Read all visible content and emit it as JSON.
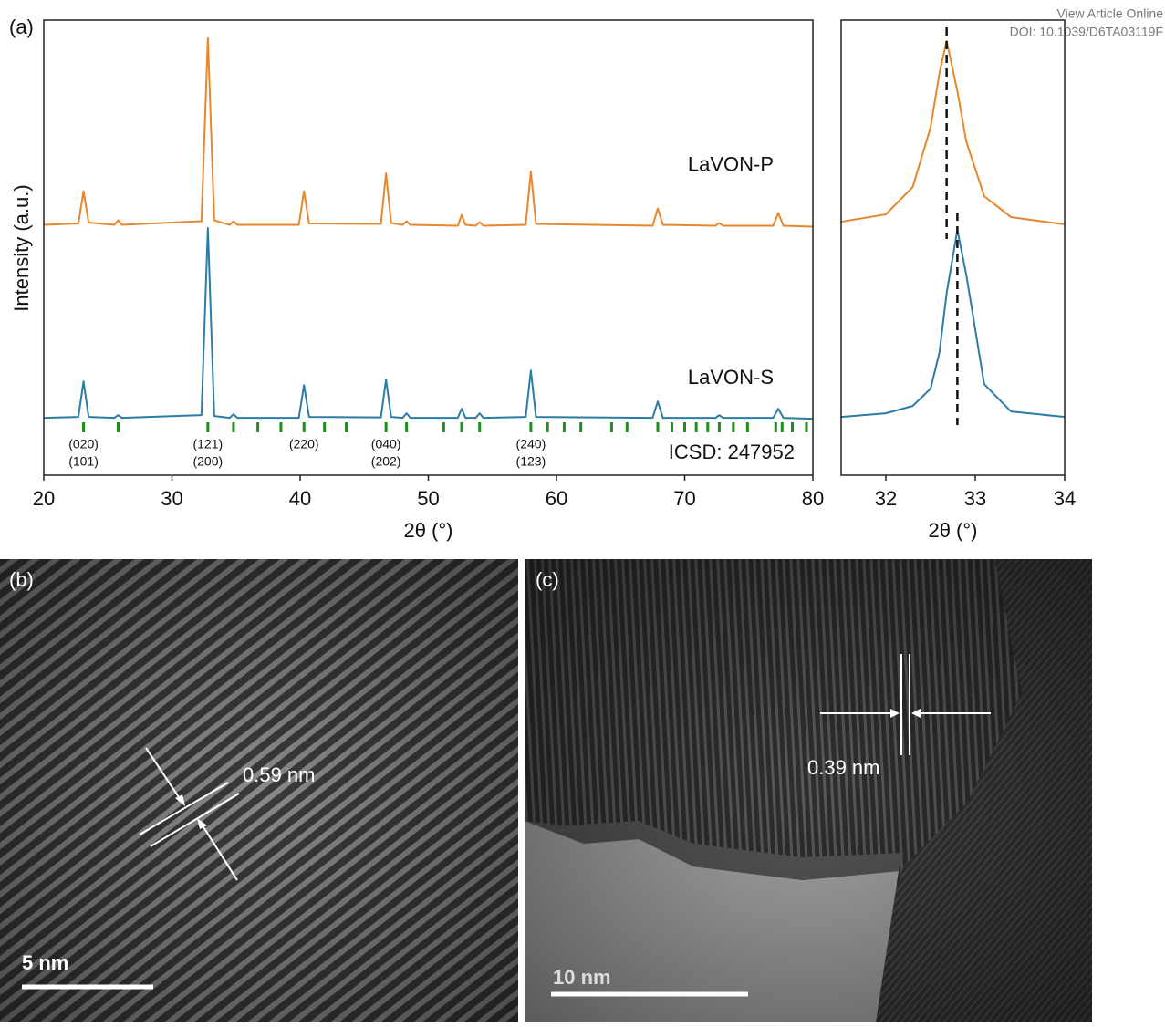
{
  "header": {
    "link": "View Article Online",
    "doi": "DOI: 10.1039/D6TA03119F"
  },
  "chart_data": [
    {
      "type": "line",
      "panel_label": "(a)",
      "y_label": "Intensity (a.u.)",
      "x_label": "2θ (°)",
      "xlim": [
        20,
        80
      ],
      "xticks": [
        20,
        30,
        40,
        50,
        60,
        70,
        80
      ],
      "ylim": [
        0,
        100
      ],
      "x": [
        20,
        22.7,
        23.1,
        23.5,
        25.5,
        25.8,
        26.1,
        32.3,
        32.8,
        33.3,
        34.5,
        34.8,
        35.1,
        39.9,
        40.3,
        40.7,
        46.3,
        46.7,
        47.1,
        48.0,
        48.3,
        48.6,
        52.3,
        52.6,
        52.9,
        53.7,
        54.0,
        54.3,
        57.6,
        58.0,
        58.4,
        67.5,
        67.9,
        68.3,
        72.4,
        72.7,
        73.0,
        76.9,
        77.3,
        77.7,
        80
      ],
      "series": [
        {
          "name": "LaVON-P",
          "color": "#e8862b",
          "values": [
            55,
            55.3,
            62.4,
            55.5,
            55,
            56,
            55,
            55.8,
            96,
            56,
            55,
            55.8,
            55,
            55,
            62.4,
            55.3,
            55.2,
            66.3,
            55.4,
            55,
            55.8,
            55,
            54.8,
            57.2,
            55,
            54.8,
            55.6,
            54.8,
            55,
            66.7,
            55.2,
            54.8,
            58.6,
            55,
            54.8,
            55.4,
            54.8,
            54.8,
            57.6,
            54.8,
            54.6
          ]
        },
        {
          "name": "LaVON-S",
          "color": "#2c7ca3",
          "values": [
            12.6,
            12.8,
            20.6,
            12.8,
            12.6,
            13.2,
            12.6,
            13.2,
            54.3,
            13,
            12.6,
            13.4,
            12.6,
            12.6,
            19.8,
            12.8,
            12.7,
            21,
            12.8,
            12.6,
            13.6,
            12.6,
            12.6,
            14.6,
            12.6,
            12.6,
            13.6,
            12.6,
            12.8,
            23,
            12.8,
            12.6,
            16.2,
            12.6,
            12.6,
            13.2,
            12.6,
            12.6,
            14.6,
            12.6,
            12.4
          ]
        }
      ],
      "reference": {
        "name": "ICSD: 247952",
        "color": "#1e8c1e",
        "positions": [
          23.1,
          25.8,
          32.8,
          34.8,
          36.7,
          38.5,
          40.3,
          41.9,
          43.6,
          46.7,
          48.3,
          51.2,
          52.6,
          54.0,
          58.0,
          59.3,
          60.6,
          61.9,
          64.3,
          65.5,
          67.9,
          69.0,
          70.0,
          70.9,
          71.8,
          72.7,
          73.8,
          74.9,
          77.1,
          77.6,
          78.4,
          79.5
        ]
      },
      "hkl_labels": [
        {
          "x": 23.1,
          "label": [
            "(020)",
            "(101)"
          ]
        },
        {
          "x": 32.8,
          "label": [
            "(121)",
            "(200)"
          ]
        },
        {
          "x": 40.3,
          "label": [
            "(220)"
          ]
        },
        {
          "x": 46.7,
          "label": [
            "(040)",
            "(202)"
          ]
        },
        {
          "x": 58.0,
          "label": [
            "(240)",
            "(123)"
          ]
        }
      ]
    },
    {
      "type": "line",
      "x_label": "2θ (°)",
      "xlim": [
        31.5,
        34
      ],
      "xticks": [
        32,
        33,
        34
      ],
      "ylim": [
        0,
        100
      ],
      "x": [
        31.5,
        32.0,
        32.3,
        32.5,
        32.6,
        32.68,
        32.8,
        32.9,
        33.1,
        33.4,
        34.0
      ],
      "series": [
        {
          "name": "LaVON-P",
          "color": "#e8862b",
          "values": [
            55.7,
            57.3,
            63.3,
            76.4,
            88.4,
            95.4,
            84.4,
            73.3,
            61.3,
            56.7,
            55.1
          ]
        },
        {
          "name": "LaVON-S",
          "color": "#2c7ca3",
          "values": [
            12.8,
            13.6,
            15.2,
            19,
            27,
            40,
            53.9,
            44,
            20,
            14,
            12.8
          ]
        }
      ],
      "peak_lines": [
        32.68,
        32.8
      ]
    }
  ],
  "images": [
    {
      "panel_label": "(b)",
      "spacing": "0.59 nm",
      "scale_bar": "5 nm"
    },
    {
      "panel_label": "(c)",
      "spacing": "0.39 nm",
      "scale_bar": "10 nm"
    }
  ]
}
